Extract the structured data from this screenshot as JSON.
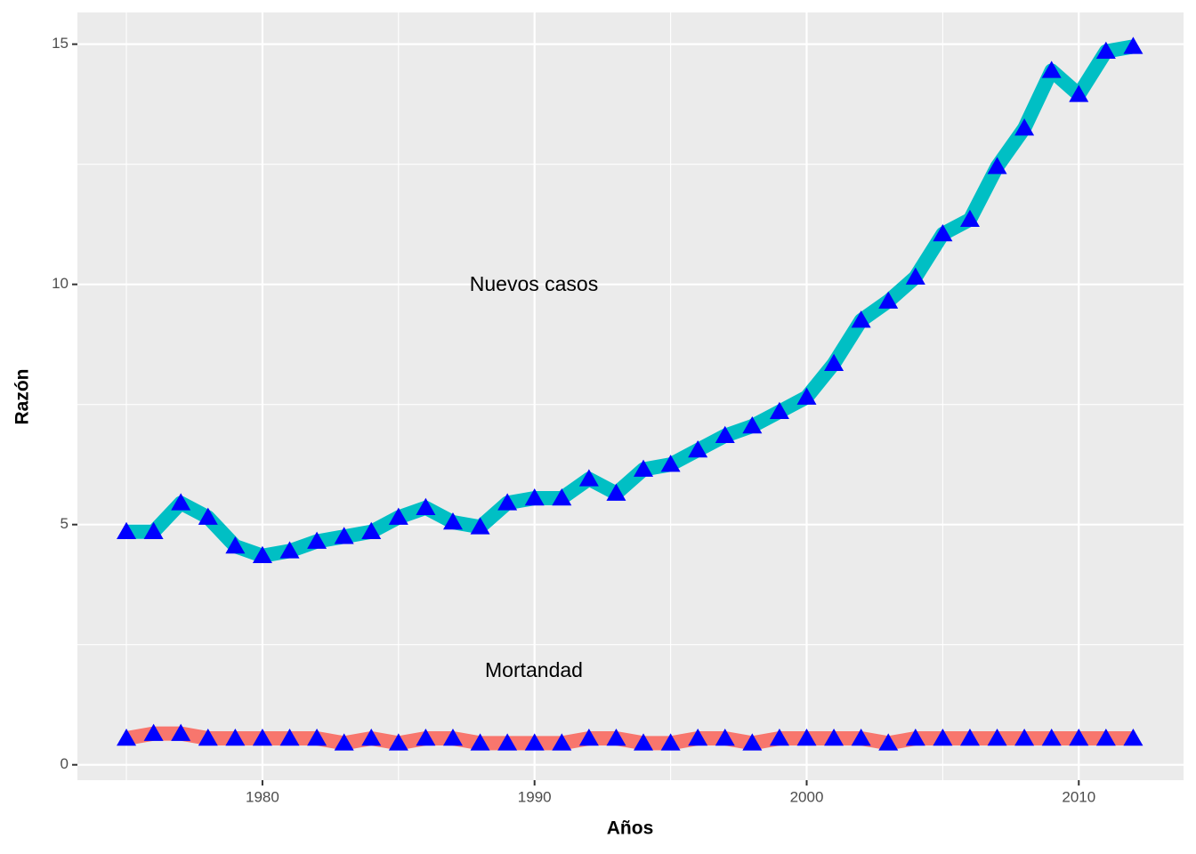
{
  "chart_data": {
    "type": "line",
    "x_label": "Años",
    "y_label": "Razón",
    "x": [
      1975,
      1976,
      1977,
      1978,
      1979,
      1980,
      1981,
      1982,
      1983,
      1984,
      1985,
      1986,
      1987,
      1988,
      1989,
      1990,
      1991,
      1992,
      1993,
      1994,
      1995,
      1996,
      1997,
      1998,
      1999,
      2000,
      2001,
      2002,
      2003,
      2004,
      2005,
      2006,
      2007,
      2008,
      2009,
      2010,
      2011,
      2012
    ],
    "series": [
      {
        "name": "Mortandad",
        "color": "#F8766D",
        "marker_color": "#0000FF",
        "values": [
          0.55,
          0.65,
          0.65,
          0.55,
          0.55,
          0.55,
          0.55,
          0.55,
          0.45,
          0.55,
          0.45,
          0.55,
          0.55,
          0.45,
          0.45,
          0.45,
          0.45,
          0.55,
          0.55,
          0.45,
          0.45,
          0.55,
          0.55,
          0.45,
          0.55,
          0.55,
          0.55,
          0.55,
          0.45,
          0.55,
          0.55,
          0.55,
          0.55,
          0.55,
          0.55,
          0.55,
          0.55,
          0.55
        ]
      },
      {
        "name": "Nuevos casos",
        "color": "#00BFC4",
        "marker_color": "#0000FF",
        "values": [
          4.85,
          4.85,
          5.45,
          5.15,
          4.55,
          4.35,
          4.45,
          4.65,
          4.75,
          4.85,
          5.15,
          5.35,
          5.05,
          4.95,
          5.45,
          5.55,
          5.55,
          5.95,
          5.65,
          6.15,
          6.25,
          6.55,
          6.85,
          7.05,
          7.35,
          7.65,
          8.35,
          9.25,
          9.65,
          10.15,
          11.05,
          11.35,
          12.45,
          13.25,
          14.45,
          13.95,
          14.85,
          14.95
        ]
      }
    ],
    "xlim": [
      1973.2,
      2013.85
    ],
    "xticks": [
      1980,
      1990,
      2000,
      2010
    ],
    "minor_xticks": [
      1975,
      1985,
      1995,
      2005
    ],
    "ylim": [
      -0.32,
      15.66
    ],
    "yticks": [
      0,
      5,
      10,
      15
    ],
    "minor_yticks": [
      2.5,
      7.5,
      12.5
    ],
    "grid": true
  }
}
